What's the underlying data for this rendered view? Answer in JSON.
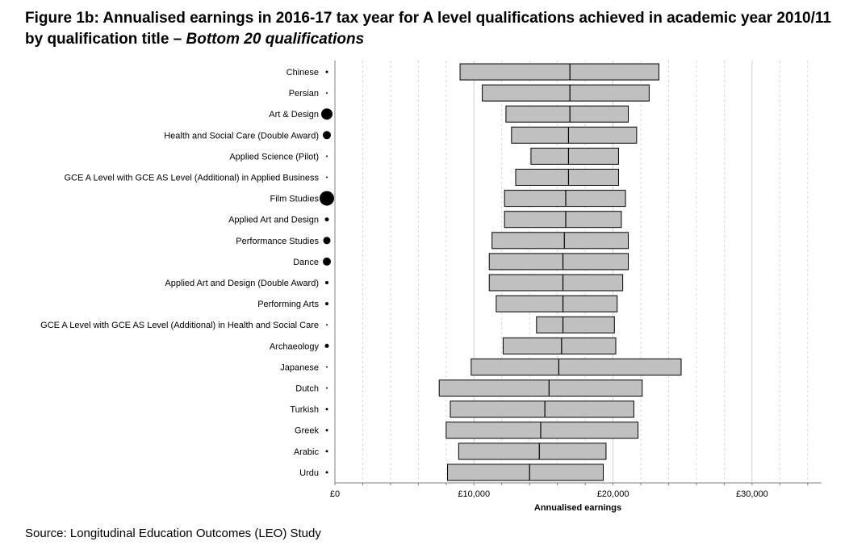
{
  "figure": {
    "title_main": "Figure 1b: Annualised earnings in 2016-17 tax year for A level qualifications achieved in academic year 2010/11 by qualification title – ",
    "title_italic": "Bottom 20 qualifications",
    "source": "Source: Longitudinal Education Outcomes (LEO) Study"
  },
  "colors": {
    "box_fill": "#c0c0c0",
    "box_stroke": "#000000",
    "grid": "#d0d0d0",
    "marker": "#000000"
  },
  "chart_data": {
    "type": "box",
    "title": "Figure 1b: Annualised earnings in 2016-17 tax year for A level qualifications achieved in academic year 2010/11 by qualification title – Bottom 20 qualifications",
    "xlabel": "Annualised earnings",
    "ylabel": "",
    "xlim": [
      0,
      35000
    ],
    "x_ticks": [
      0,
      10000,
      20000,
      30000
    ],
    "x_tick_labels": [
      "£0",
      "£10,000",
      "£20,000",
      "£30,000"
    ],
    "minor_grid_step": 2000,
    "grid": true,
    "marker_note": "marker size next to each label indicates relative number of students",
    "categories": [
      {
        "label": "Chinese",
        "q1": 9000,
        "median": 16900,
        "q3": 23300,
        "marker": 1.5
      },
      {
        "label": "Persian",
        "q1": 10600,
        "median": 16900,
        "q3": 22600,
        "marker": 1
      },
      {
        "label": "Art & Design",
        "q1": 12300,
        "median": 16900,
        "q3": 21100,
        "marker": 7
      },
      {
        "label": "Health and Social Care (Double Award)",
        "q1": 12700,
        "median": 16800,
        "q3": 21700,
        "marker": 5
      },
      {
        "label": "Applied Science (Pilot)",
        "q1": 14100,
        "median": 16800,
        "q3": 20400,
        "marker": 1
      },
      {
        "label": "GCE A Level with GCE AS Level (Additional) in Applied Business",
        "q1": 13000,
        "median": 16800,
        "q3": 20400,
        "marker": 1
      },
      {
        "label": "Film Studies",
        "q1": 12200,
        "median": 16600,
        "q3": 20900,
        "marker": 9
      },
      {
        "label": "Applied Art and Design",
        "q1": 12200,
        "median": 16600,
        "q3": 20600,
        "marker": 2.5
      },
      {
        "label": "Performance Studies",
        "q1": 11300,
        "median": 16500,
        "q3": 21100,
        "marker": 4.5
      },
      {
        "label": "Dance",
        "q1": 11100,
        "median": 16400,
        "q3": 21100,
        "marker": 5
      },
      {
        "label": "Applied Art and Design (Double Award)",
        "q1": 11100,
        "median": 16400,
        "q3": 20700,
        "marker": 2
      },
      {
        "label": "Performing Arts",
        "q1": 11600,
        "median": 16400,
        "q3": 20300,
        "marker": 2
      },
      {
        "label": "GCE A Level with GCE AS Level (Additional) in Health and Social Care",
        "q1": 14500,
        "median": 16400,
        "q3": 20100,
        "marker": 1
      },
      {
        "label": "Archaeology",
        "q1": 12100,
        "median": 16300,
        "q3": 20200,
        "marker": 2.5
      },
      {
        "label": "Japanese",
        "q1": 9800,
        "median": 16100,
        "q3": 24900,
        "marker": 1
      },
      {
        "label": "Dutch",
        "q1": 7500,
        "median": 15400,
        "q3": 22100,
        "marker": 1
      },
      {
        "label": "Turkish",
        "q1": 8300,
        "median": 15100,
        "q3": 21500,
        "marker": 1.5
      },
      {
        "label": "Greek",
        "q1": 8000,
        "median": 14800,
        "q3": 21800,
        "marker": 1.5
      },
      {
        "label": "Arabic",
        "q1": 8900,
        "median": 14700,
        "q3": 19500,
        "marker": 1.5
      },
      {
        "label": "Urdu",
        "q1": 8100,
        "median": 14000,
        "q3": 19300,
        "marker": 1.5
      }
    ]
  }
}
